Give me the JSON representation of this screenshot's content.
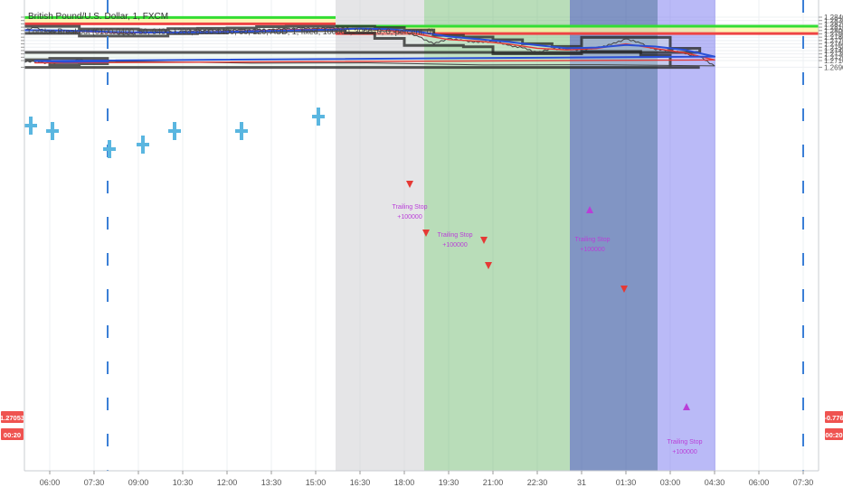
{
  "header": {
    "symbol_line": "British Pound/U.S. Dollar, 1, FXCM",
    "indicator_line": "London Breakout (0100-0400, 50, 0400-1200, 0900-1400, 60, 120, AUD, 1, fixed, 100000, 3000, 0, 0, percent, 0)"
  },
  "left_panel": {
    "price_badge": "1.27053",
    "time_badge": "00:20",
    "badge_color": "#ef5350"
  },
  "right_panel": {
    "price_badge": "-0.776",
    "time_badge": "00:20",
    "badge_color": "#ef5350"
  },
  "trade_labels": [
    {
      "title": "Trailing Stop",
      "pnl": "+100000"
    },
    {
      "title": "Trailing Stop",
      "pnl": "+100000"
    },
    {
      "title": "Trailing Stop",
      "pnl": "+100000"
    },
    {
      "title": "Trailing Stop",
      "pnl": "+100000"
    }
  ],
  "colors": {
    "background": "#ffffff",
    "grid": "#eef0f3",
    "session_gray": "#d0d0d4",
    "session_green": "#63b363",
    "session_blue": "#2d4f9c",
    "session_violet": "#6666ee",
    "range_yellow": "#fff59d",
    "high_line": "#33dd33",
    "low_line": "#ee4444",
    "channel_line": "#222222",
    "price_line": "#444444",
    "ma_fast": "#e53935",
    "ma_slow": "#2a4fd6",
    "trade_marker": "#b93ed8",
    "divider": "#3b7fd6"
  },
  "chart_data": {
    "type": "line",
    "title": "British Pound/U.S. Dollar, 1, FXCM",
    "xlabel": "",
    "ylabel": "",
    "ylim": [
      1.2685,
      1.2845
    ],
    "grid": true,
    "y_ticks": [
      "1.28400",
      "1.28300",
      "1.28200",
      "1.28100",
      "1.28000",
      "1.27900",
      "1.27800",
      "1.27700",
      "1.27600",
      "1.27500",
      "1.27400",
      "1.27300",
      "1.27200",
      "1.27100",
      "1.26900"
    ],
    "x_ticks": [
      "06:00",
      "07:30",
      "09:00",
      "10:30",
      "12:00",
      "13:30",
      "15:00",
      "16:30",
      "18:00",
      "19:30",
      "21:00",
      "22:30",
      "31",
      "01:30",
      "03:00",
      "04:30",
      "06:00",
      "07:30"
    ],
    "range_boxes": [
      {
        "from": "01:00",
        "to": "16:30",
        "high": 1.2839,
        "low": 1.282
      },
      {
        "from": "16:30",
        "to": "end",
        "high": 1.2813,
        "low": 1.2791
      }
    ],
    "series": [
      {
        "name": "Price",
        "x": [
          "05:00",
          "05:30",
          "06:00",
          "06:30",
          "07:00",
          "07:30",
          "08:00",
          "08:30",
          "09:00",
          "09:30",
          "10:00",
          "10:30",
          "11:00",
          "11:30",
          "12:00",
          "12:30",
          "13:00",
          "13:30",
          "14:00",
          "14:30",
          "15:00",
          "15:30",
          "16:00",
          "16:30",
          "17:00",
          "17:30",
          "18:00",
          "18:30",
          "19:00",
          "19:30",
          "20:00",
          "20:30",
          "21:00",
          "21:30",
          "22:00",
          "22:30",
          "23:00",
          "23:30",
          "00:00",
          "00:30",
          "01:00",
          "01:30",
          "02:00",
          "02:30",
          "03:00",
          "03:30",
          "04:00",
          "04:30",
          "05:00",
          "05:30",
          "06:00",
          "06:30",
          "07:00",
          "07:30",
          "08:00"
        ],
        "values": [
          1.28,
          1.2808,
          1.2796,
          1.2799,
          1.2797,
          1.28,
          1.2795,
          1.2788,
          1.2792,
          1.2795,
          1.2795,
          1.2797,
          1.2799,
          1.2801,
          1.28,
          1.2802,
          1.2801,
          1.2803,
          1.2805,
          1.2807,
          1.2806,
          1.2808,
          1.2806,
          1.2804,
          1.28,
          1.2797,
          1.2795,
          1.2781,
          1.276,
          1.2776,
          1.277,
          1.2764,
          1.2768,
          1.2756,
          1.2748,
          1.2735,
          1.2745,
          1.2744,
          1.2742,
          1.2748,
          1.2758,
          1.2775,
          1.2762,
          1.2742,
          1.2742,
          1.273,
          1.2721,
          1.2694,
          1.2708,
          1.2706,
          1.2702,
          1.2706,
          1.2712,
          1.2705,
          1.2705
        ]
      },
      {
        "name": "Fast MA",
        "x": [
          "05:00",
          "06:30",
          "08:00",
          "09:30",
          "11:00",
          "12:30",
          "14:00",
          "15:30",
          "16:30",
          "17:30",
          "18:30",
          "19:30",
          "20:30",
          "21:30",
          "22:30",
          "23:30",
          "00:30",
          "01:30",
          "02:30",
          "03:30",
          "04:30",
          "05:30",
          "06:30",
          "07:30",
          "08:00"
        ],
        "values": [
          1.2802,
          1.2799,
          1.2794,
          1.2793,
          1.2796,
          1.2798,
          1.2802,
          1.2805,
          1.2806,
          1.2801,
          1.2788,
          1.2773,
          1.2768,
          1.276,
          1.2747,
          1.2742,
          1.2746,
          1.276,
          1.2746,
          1.2733,
          1.2712,
          1.2703,
          1.2704,
          1.2705,
          1.2706
        ]
      },
      {
        "name": "Slow MA",
        "x": [
          "05:00",
          "06:30",
          "08:00",
          "09:30",
          "11:00",
          "12:30",
          "14:00",
          "15:30",
          "16:30",
          "17:30",
          "18:30",
          "19:30",
          "20:30",
          "21:30",
          "22:30",
          "23:30",
          "00:30",
          "01:30",
          "02:30",
          "03:30",
          "04:30",
          "05:30",
          "06:30",
          "07:30",
          "08:00"
        ],
        "values": [
          1.2801,
          1.28,
          1.2796,
          1.2794,
          1.2795,
          1.2797,
          1.28,
          1.2803,
          1.2806,
          1.2804,
          1.2796,
          1.2782,
          1.2774,
          1.2766,
          1.2756,
          1.2747,
          1.2749,
          1.2757,
          1.2752,
          1.2742,
          1.2722,
          1.2709,
          1.2706,
          1.2707,
          1.2707
        ]
      }
    ]
  }
}
